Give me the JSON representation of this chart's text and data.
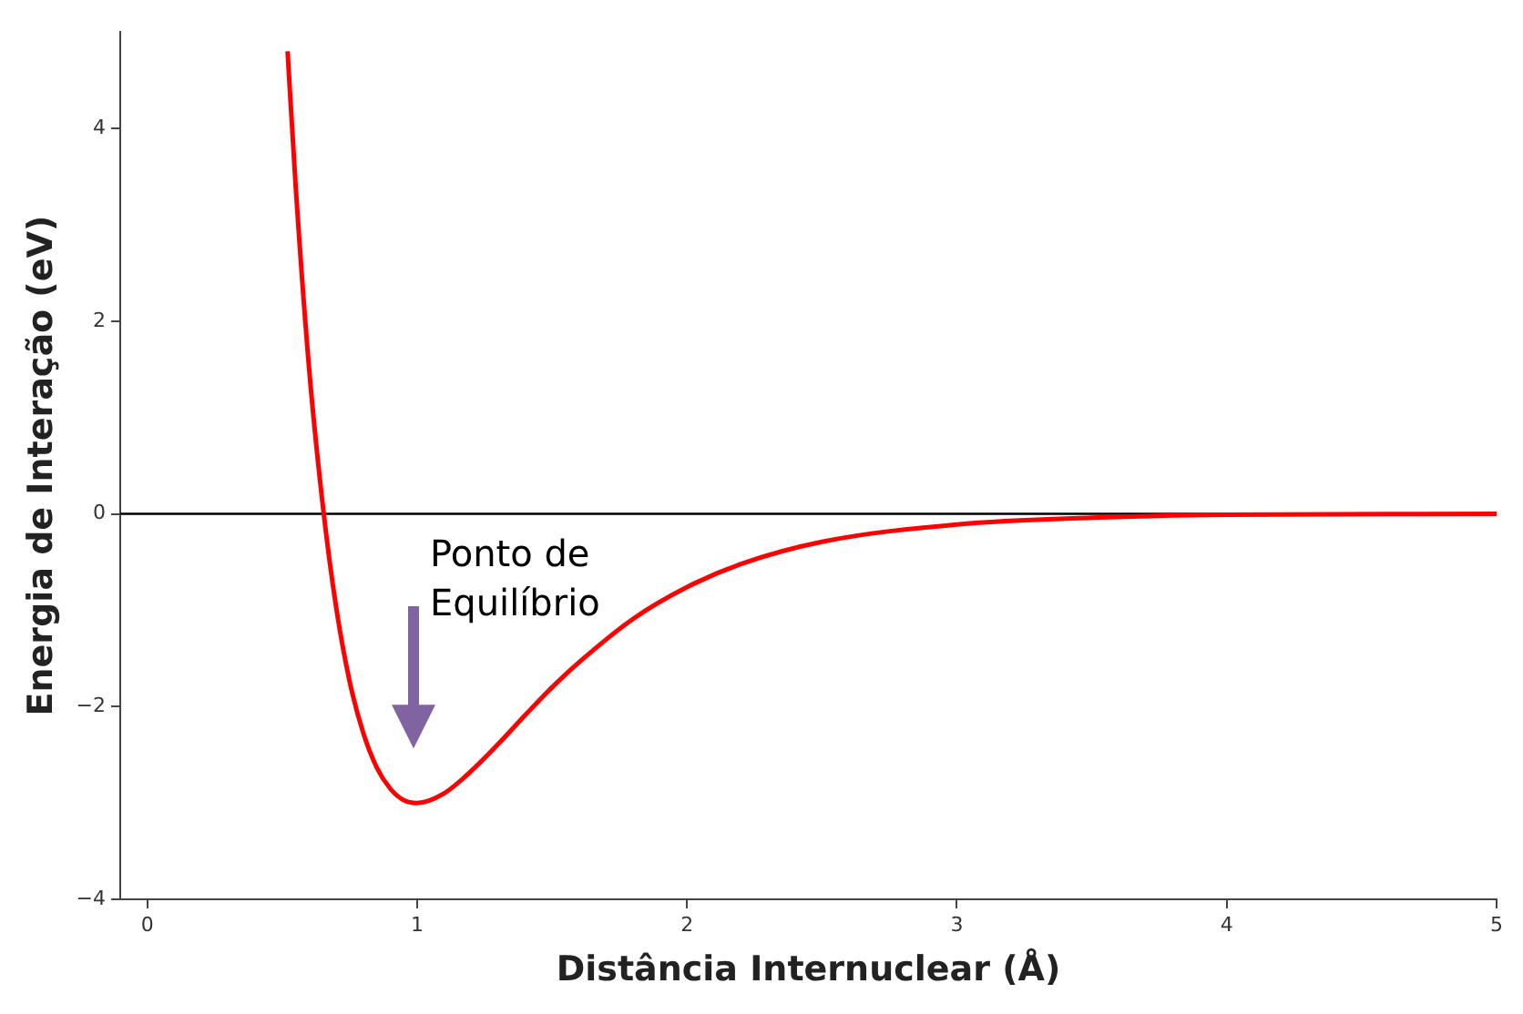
{
  "chart_data": {
    "type": "line",
    "xlabel": "Distância Internuclear (Å)",
    "ylabel": "Energia de Interação (eV)",
    "x": [
      0.52,
      0.55,
      0.6,
      0.65,
      0.7,
      0.75,
      0.8,
      0.85,
      0.9,
      0.95,
      1,
      1.1,
      1.2,
      1.3,
      1.4,
      1.5,
      1.6,
      1.8,
      2,
      2.2,
      2.5,
      3,
      3.5,
      4,
      5
    ],
    "series": [
      {
        "color": "#ff0000",
        "values": [
          4.8,
          3.4,
          1.5,
          0.1,
          -0.97,
          -1.74,
          -2.27,
          -2.63,
          -2.85,
          -2.97,
          -3,
          -2.9,
          -2.67,
          -2.39,
          -2.09,
          -1.8,
          -1.54,
          -1.09,
          -0.76,
          -0.52,
          -0.29,
          -0.11,
          -0.04,
          -0.01,
          0
        ]
      }
    ],
    "xlim": [
      -0.1,
      5
    ],
    "ylim": [
      -4,
      5
    ],
    "xticks": [
      0,
      1,
      2,
      3,
      4,
      5
    ],
    "yticks": [
      -4,
      -2,
      0,
      2,
      4
    ],
    "ref_lines": [
      {
        "axis": "y",
        "value": 0,
        "color": "#000000"
      }
    ],
    "annotations": [
      "Ponto de\nEquilíbrio"
    ],
    "grid": false,
    "legend": false,
    "marker": "none",
    "line_style": "solid"
  }
}
